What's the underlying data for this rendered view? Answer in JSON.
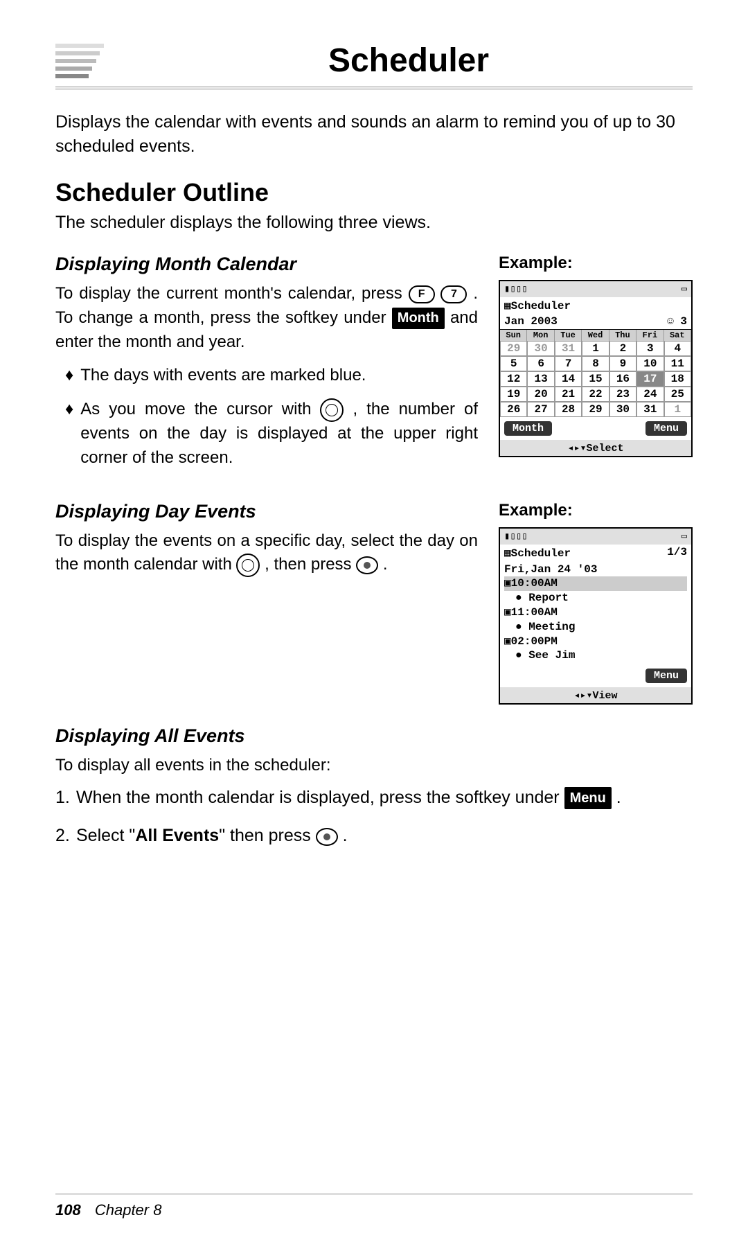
{
  "title": "Scheduler",
  "intro": "Displays the calendar with events and sounds an alarm to remind you of up to 30 scheduled events.",
  "outline_heading": "Scheduler Outline",
  "outline_sub": "The scheduler displays the following three views.",
  "example_label": "Example:",
  "month": {
    "heading": "Displaying Month Calendar",
    "p1a": "To display the current month's calendar, press ",
    "key_f": "F",
    "key_7": "7",
    "p1b": ". To change a month, press the softkey under ",
    "soft_month": "Month",
    "p1c": " and enter the month and year.",
    "bullet1": "The days with events are marked blue.",
    "bullet2a": "As you move the cursor with ",
    "bullet2b": ", the number of events on the day is displayed at the upper right corner of the screen."
  },
  "day": {
    "heading": "Displaying Day Events",
    "p1a": "To display the events on a specific day, select the day on the month calendar with ",
    "p1b": ", then press ",
    "p1c": "."
  },
  "all": {
    "heading": "Displaying All Events",
    "p1": "To display all events in the scheduler:",
    "step1a": "When the month calendar is displayed, press the softkey under ",
    "soft_menu": "Menu",
    "step1b": ".",
    "step2a": "Select \"",
    "step2bold": "All Events",
    "step2b": "\" then press ",
    "step2c": "."
  },
  "phone1": {
    "title": "Scheduler",
    "sub_left": "Jan 2003",
    "sub_right": "3",
    "dow": [
      "Sun",
      "Mon",
      "Tue",
      "Wed",
      "Thu",
      "Fri",
      "Sat"
    ],
    "rows": [
      [
        "29",
        "30",
        "31",
        "1",
        "2",
        "3",
        "4"
      ],
      [
        "5",
        "6",
        "7",
        "8",
        "9",
        "10",
        "11"
      ],
      [
        "12",
        "13",
        "14",
        "15",
        "16",
        "17",
        "18"
      ],
      [
        "19",
        "20",
        "21",
        "22",
        "23",
        "24",
        "25"
      ],
      [
        "26",
        "27",
        "28",
        "29",
        "30",
        "31",
        "1"
      ]
    ],
    "selected": "17",
    "soft_left": "Month",
    "soft_right": "Menu",
    "bottom": "Select"
  },
  "phone2": {
    "title": "Scheduler",
    "count": "1/3",
    "date": "Fri,Jan 24 '03",
    "events": [
      {
        "time": "10:00AM",
        "label": "Report",
        "hl": true
      },
      {
        "time": "11:00AM",
        "label": "Meeting",
        "hl": false
      },
      {
        "time": "02:00PM",
        "label": "See Jim",
        "hl": false
      }
    ],
    "soft_right": "Menu",
    "bottom": "View"
  },
  "footer": {
    "page": "108",
    "chapter": "Chapter 8"
  }
}
